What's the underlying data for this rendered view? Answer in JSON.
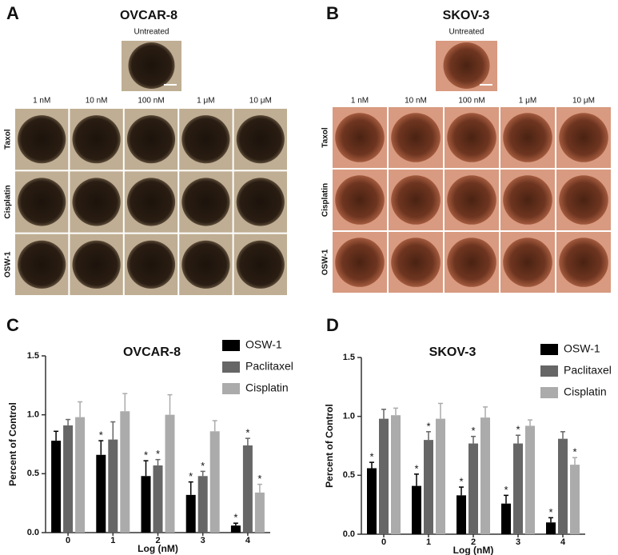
{
  "image_panels": [
    {
      "label": "A",
      "title": "OVCAR-8",
      "reference": "Untreated",
      "columns": [
        "1 nM",
        "10 nM",
        "100 nM",
        "1 μM",
        "10 μM"
      ],
      "rows": [
        "Taxol",
        "Cisplatin",
        "OSW-1"
      ]
    },
    {
      "label": "B",
      "title": "SKOV-3",
      "reference": "Untreated",
      "columns": [
        "1 nM",
        "10 nM",
        "100 nM",
        "1 μM",
        "10 μM"
      ],
      "rows": [
        "Taxol",
        "Cisplatin",
        "OSW-1"
      ]
    }
  ],
  "chart_data": [
    {
      "type": "bar",
      "label": "C",
      "title": "OVCAR-8",
      "x_label": "Log (nM)",
      "y_label": "Percent of Control",
      "categories": [
        "0",
        "1",
        "2",
        "3",
        "4"
      ],
      "ylim": [
        0,
        1.5
      ],
      "yticks": [
        {
          "value": 0,
          "label": "0.0"
        },
        0.5,
        {
          "value": 1,
          "label": "1.0"
        },
        1.5
      ],
      "legend": "top-right",
      "series": [
        {
          "name": "OSW-1",
          "color": "#000000",
          "values": [
            0.78,
            0.66,
            0.48,
            0.32,
            0.06
          ],
          "errors": [
            0.08,
            0.12,
            0.13,
            0.11,
            0.02
          ],
          "significance": [
            null,
            "*",
            "*",
            "*",
            "*"
          ]
        },
        {
          "name": "Paclitaxel",
          "color": "#666666",
          "values": [
            0.91,
            0.79,
            0.57,
            0.48,
            0.74
          ],
          "errors": [
            0.05,
            0.15,
            0.05,
            0.04,
            0.06
          ],
          "significance": [
            null,
            null,
            "*",
            "*",
            "*"
          ]
        },
        {
          "name": "Cisplatin",
          "color": "#ababab",
          "values": [
            0.98,
            1.03,
            1.0,
            0.86,
            0.34
          ],
          "errors": [
            0.13,
            0.15,
            0.17,
            0.09,
            0.07
          ],
          "significance": [
            null,
            null,
            null,
            null,
            "*"
          ]
        }
      ]
    },
    {
      "type": "bar",
      "label": "D",
      "title": "SKOV-3",
      "x_label": "Log (nM)",
      "y_label": "Percent of  Control",
      "categories": [
        "0",
        "1",
        "2",
        "3",
        "4"
      ],
      "ylim": [
        0,
        1.5
      ],
      "yticks": [
        {
          "value": 0,
          "label": "0.0"
        },
        0.5,
        {
          "value": 1,
          "label": "1.0"
        },
        1.5
      ],
      "legend": "top-right",
      "series": [
        {
          "name": "OSW-1",
          "color": "#000000",
          "values": [
            0.56,
            0.41,
            0.33,
            0.26,
            0.1
          ],
          "errors": [
            0.05,
            0.1,
            0.07,
            0.07,
            0.04
          ],
          "significance": [
            "*",
            "*",
            "*",
            "*",
            "*"
          ]
        },
        {
          "name": "Paclitaxel",
          "color": "#666666",
          "values": [
            0.98,
            0.8,
            0.77,
            0.77,
            0.81
          ],
          "errors": [
            0.08,
            0.07,
            0.06,
            0.07,
            0.06
          ],
          "significance": [
            null,
            "*",
            "*",
            "*",
            null
          ]
        },
        {
          "name": "Cisplatin",
          "color": "#ababab",
          "values": [
            1.01,
            0.98,
            0.99,
            0.92,
            0.59
          ],
          "errors": [
            0.06,
            0.13,
            0.09,
            0.05,
            0.06
          ],
          "significance": [
            null,
            null,
            null,
            null,
            "*"
          ]
        }
      ]
    }
  ]
}
